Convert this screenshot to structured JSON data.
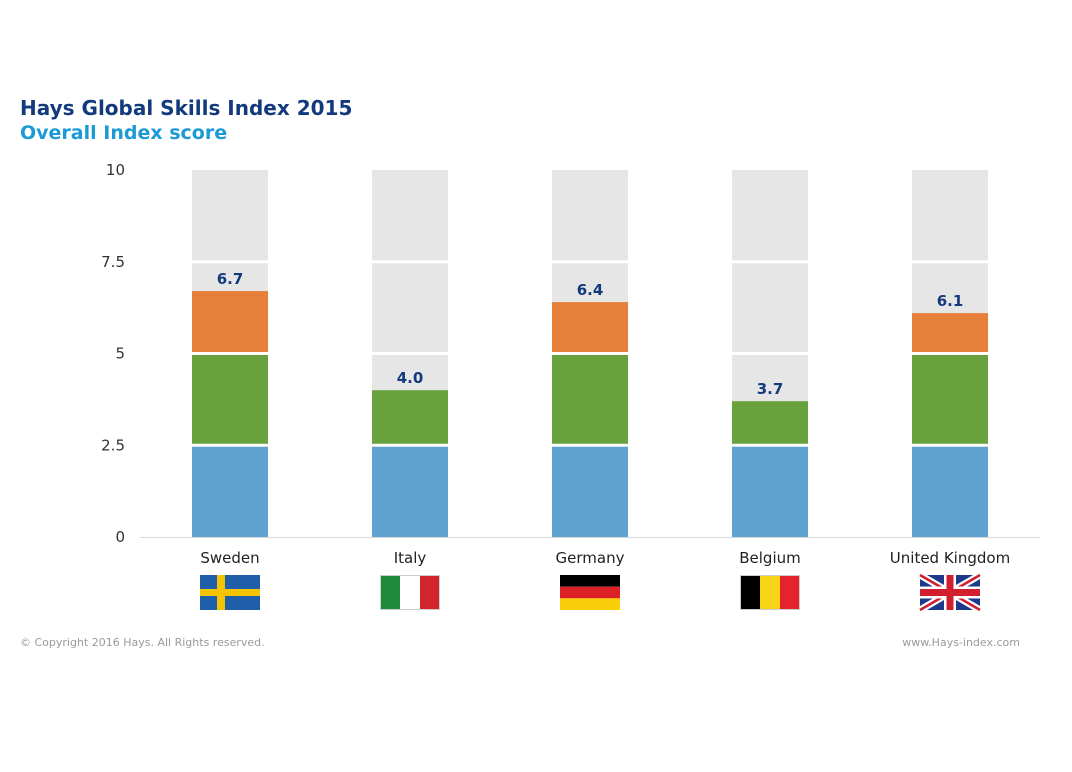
{
  "title": "Hays Global Skills Index 2015",
  "subtitle": "Overall Index score",
  "footer": {
    "copyright": "© Copyright 2016 Hays. All Rights reserved.",
    "url": "www.Hays-index.com"
  },
  "chart_data": {
    "type": "bar",
    "stacked_bands": [
      2.5,
      5,
      7.5,
      10
    ],
    "band_colors": [
      "#5ea3cf",
      "#67a23c",
      "#e67f37",
      "#e6e6e6"
    ],
    "categories": [
      "Sweden",
      "Italy",
      "Germany",
      "Belgium",
      "United Kingdom"
    ],
    "values": [
      6.7,
      4.0,
      6.4,
      3.7,
      6.1
    ],
    "data_labels": [
      "6.7",
      "4.0",
      "6.4",
      "3.7",
      "6.1"
    ],
    "flags": [
      "sweden-flag",
      "italy-flag",
      "germany-flag",
      "belgium-flag",
      "uk-flag"
    ],
    "ylim": [
      0,
      10
    ],
    "yticks": [
      0,
      2.5,
      5,
      7.5,
      10
    ],
    "ytick_labels": [
      "0",
      "2.5",
      "5",
      "7.5",
      "10"
    ],
    "grid": false,
    "label_color": "#123a7c"
  }
}
